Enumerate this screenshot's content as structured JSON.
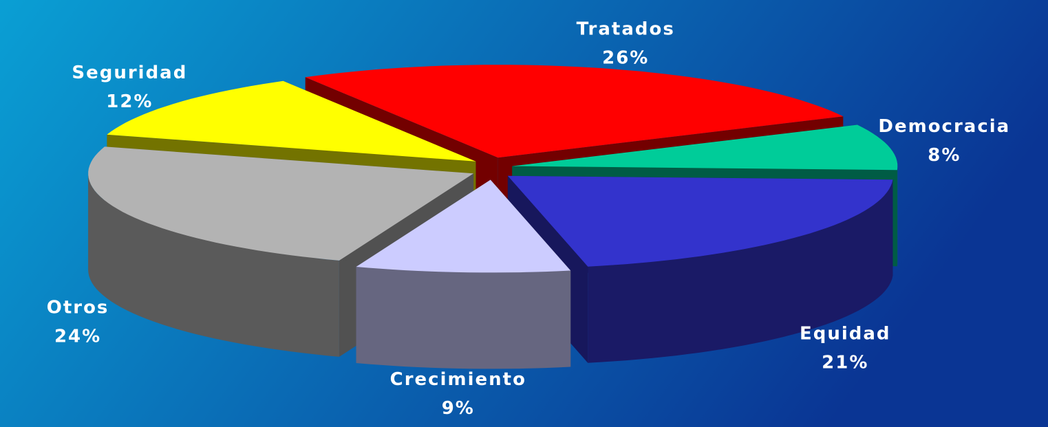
{
  "chart_data": {
    "type": "pie3d",
    "categories": [
      "Tratados",
      "Democracia",
      "Equidad",
      "Crecimiento",
      "Otros",
      "Seguridad"
    ],
    "values": [
      26,
      8,
      21,
      9,
      24,
      12
    ],
    "value_labels": [
      "26%",
      "8%",
      "21%",
      "9%",
      "24%",
      "12%"
    ],
    "colors": [
      "#ff0000",
      "#00cc99",
      "#3333cc",
      "#ccccff",
      "#b3b3b3",
      "#ffff00"
    ]
  }
}
